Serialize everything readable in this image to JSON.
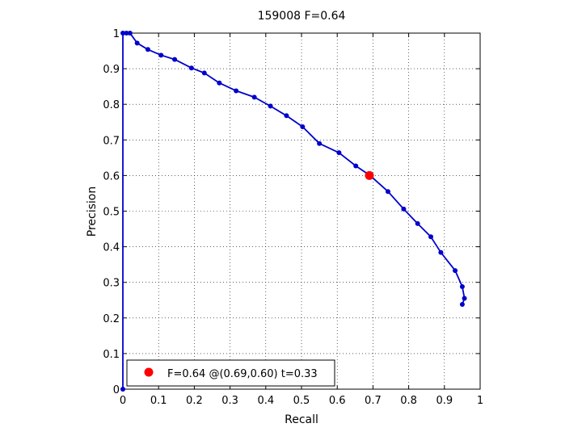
{
  "chart_data": {
    "type": "line",
    "title": "159008 F=0.64",
    "xlabel": "Recall",
    "ylabel": "Precision",
    "xlim": [
      0,
      1
    ],
    "ylim": [
      0,
      1
    ],
    "xticks": [
      "0",
      "0.1",
      "0.2",
      "0.3",
      "0.4",
      "0.5",
      "0.6",
      "0.7",
      "0.8",
      "0.9",
      "1"
    ],
    "yticks": [
      "0",
      "0.1",
      "0.2",
      "0.3",
      "0.4",
      "0.5",
      "0.6",
      "0.7",
      "0.8",
      "0.9",
      "1"
    ],
    "grid": true,
    "series": [
      {
        "color": "#0000cc",
        "marker": "dot",
        "points": [
          [
            0.0,
            0.0
          ],
          [
            0.0,
            1.0
          ],
          [
            0.01,
            1.0
          ],
          [
            0.02,
            1.0
          ],
          [
            0.04,
            0.972
          ],
          [
            0.07,
            0.954
          ],
          [
            0.107,
            0.938
          ],
          [
            0.145,
            0.926
          ],
          [
            0.192,
            0.902
          ],
          [
            0.228,
            0.888
          ],
          [
            0.27,
            0.86
          ],
          [
            0.317,
            0.838
          ],
          [
            0.368,
            0.82
          ],
          [
            0.413,
            0.795
          ],
          [
            0.458,
            0.768
          ],
          [
            0.503,
            0.737
          ],
          [
            0.55,
            0.69
          ],
          [
            0.605,
            0.664
          ],
          [
            0.652,
            0.627
          ],
          [
            0.692,
            0.6
          ],
          [
            0.742,
            0.555
          ],
          [
            0.786,
            0.506
          ],
          [
            0.825,
            0.465
          ],
          [
            0.862,
            0.428
          ],
          [
            0.89,
            0.384
          ],
          [
            0.93,
            0.333
          ],
          [
            0.95,
            0.288
          ],
          [
            0.956,
            0.255
          ],
          [
            0.95,
            0.238
          ]
        ]
      }
    ],
    "highlight": {
      "recall": 0.69,
      "precision": 0.6,
      "color": "#ff0000"
    },
    "legend": {
      "position": "bottom-left",
      "text": "F=0.64 @(0.69,0.60) t=0.33"
    }
  }
}
